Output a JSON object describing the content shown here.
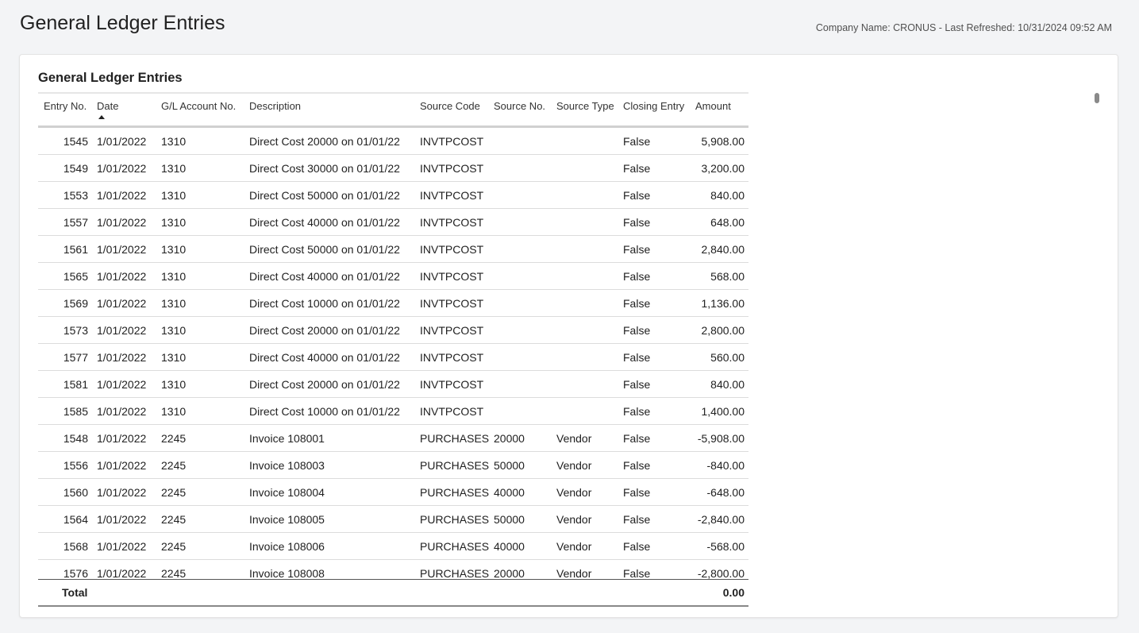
{
  "header": {
    "title": "General Ledger Entries",
    "meta": "Company Name: CRONUS - Last Refreshed: 10/31/2024 09:52 AM"
  },
  "card": {
    "title": "General Ledger Entries",
    "columns": [
      "Entry No.",
      "Date",
      "G/L Account No.",
      "Description",
      "Source Code",
      "Source No.",
      "Source Type",
      "Closing Entry",
      "Amount"
    ],
    "sort": {
      "column": "Date",
      "direction": "ascending"
    },
    "rows": [
      [
        "1545",
        "1/01/2022",
        "1310",
        "Direct Cost 20000 on 01/01/22",
        "INVTPCOST",
        "",
        "",
        "False",
        "5,908.00"
      ],
      [
        "1549",
        "1/01/2022",
        "1310",
        "Direct Cost 30000 on 01/01/22",
        "INVTPCOST",
        "",
        "",
        "False",
        "3,200.00"
      ],
      [
        "1553",
        "1/01/2022",
        "1310",
        "Direct Cost 50000 on 01/01/22",
        "INVTPCOST",
        "",
        "",
        "False",
        "840.00"
      ],
      [
        "1557",
        "1/01/2022",
        "1310",
        "Direct Cost 40000 on 01/01/22",
        "INVTPCOST",
        "",
        "",
        "False",
        "648.00"
      ],
      [
        "1561",
        "1/01/2022",
        "1310",
        "Direct Cost 50000 on 01/01/22",
        "INVTPCOST",
        "",
        "",
        "False",
        "2,840.00"
      ],
      [
        "1565",
        "1/01/2022",
        "1310",
        "Direct Cost 40000 on 01/01/22",
        "INVTPCOST",
        "",
        "",
        "False",
        "568.00"
      ],
      [
        "1569",
        "1/01/2022",
        "1310",
        "Direct Cost 10000 on 01/01/22",
        "INVTPCOST",
        "",
        "",
        "False",
        "1,136.00"
      ],
      [
        "1573",
        "1/01/2022",
        "1310",
        "Direct Cost 20000 on 01/01/22",
        "INVTPCOST",
        "",
        "",
        "False",
        "2,800.00"
      ],
      [
        "1577",
        "1/01/2022",
        "1310",
        "Direct Cost 40000 on 01/01/22",
        "INVTPCOST",
        "",
        "",
        "False",
        "560.00"
      ],
      [
        "1581",
        "1/01/2022",
        "1310",
        "Direct Cost 20000 on 01/01/22",
        "INVTPCOST",
        "",
        "",
        "False",
        "840.00"
      ],
      [
        "1585",
        "1/01/2022",
        "1310",
        "Direct Cost 10000 on 01/01/22",
        "INVTPCOST",
        "",
        "",
        "False",
        "1,400.00"
      ],
      [
        "1548",
        "1/01/2022",
        "2245",
        "Invoice 108001",
        "PURCHASES",
        "20000",
        "Vendor",
        "False",
        "-5,908.00"
      ],
      [
        "1556",
        "1/01/2022",
        "2245",
        "Invoice 108003",
        "PURCHASES",
        "50000",
        "Vendor",
        "False",
        "-840.00"
      ],
      [
        "1560",
        "1/01/2022",
        "2245",
        "Invoice 108004",
        "PURCHASES",
        "40000",
        "Vendor",
        "False",
        "-648.00"
      ],
      [
        "1564",
        "1/01/2022",
        "2245",
        "Invoice 108005",
        "PURCHASES",
        "50000",
        "Vendor",
        "False",
        "-2,840.00"
      ],
      [
        "1568",
        "1/01/2022",
        "2245",
        "Invoice 108006",
        "PURCHASES",
        "40000",
        "Vendor",
        "False",
        "-568.00"
      ],
      [
        "1576",
        "1/01/2022",
        "2245",
        "Invoice 108008",
        "PURCHASES",
        "20000",
        "Vendor",
        "False",
        "-2,800.00"
      ]
    ],
    "total": {
      "label": "Total",
      "amount": "0.00"
    }
  }
}
